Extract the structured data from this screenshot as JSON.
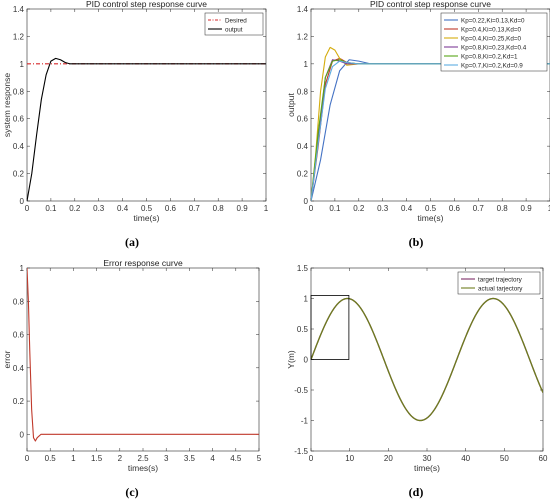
{
  "captions": [
    "(a)",
    "(b)",
    "(c)",
    "(d)"
  ],
  "chart_data": [
    {
      "id": "a",
      "type": "line",
      "title": "PID control step response curve",
      "xlabel": "time(s)",
      "ylabel": "system response",
      "xlim": [
        0,
        1
      ],
      "ylim": [
        0,
        1.4
      ],
      "xticks": [
        0,
        0.1,
        0.2,
        0.3,
        0.4,
        0.5,
        0.6,
        0.7,
        0.8,
        0.9,
        1
      ],
      "yticks": [
        0,
        0.2,
        0.4,
        0.6,
        0.8,
        1,
        1.2,
        1.4
      ],
      "legend": "top-right",
      "series": [
        {
          "name": "Desired",
          "color": "#d62728",
          "dash": "dashdot",
          "x": [
            0,
            1
          ],
          "y": [
            1,
            1
          ]
        },
        {
          "name": "output",
          "color": "#000000",
          "x": [
            0,
            0.02,
            0.04,
            0.06,
            0.08,
            0.1,
            0.12,
            0.14,
            0.16,
            0.18,
            0.2,
            0.25,
            0.3,
            1
          ],
          "y": [
            0,
            0.2,
            0.48,
            0.74,
            0.92,
            1.02,
            1.04,
            1.03,
            1.01,
            1.0,
            1.0,
            1.0,
            1.0,
            1.0
          ]
        }
      ]
    },
    {
      "id": "b",
      "type": "line",
      "title": "PID control step response curve",
      "xlabel": "time(s)",
      "ylabel": "output",
      "xlim": [
        0,
        1
      ],
      "ylim": [
        0,
        1.4
      ],
      "xticks": [
        0,
        0.1,
        0.2,
        0.3,
        0.4,
        0.5,
        0.6,
        0.7,
        0.8,
        0.9,
        1
      ],
      "yticks": [
        0,
        0.2,
        0.4,
        0.6,
        0.8,
        1,
        1.2,
        1.4
      ],
      "legend": "top-right",
      "series": [
        {
          "name": "Kp=0.22,Ki=0.13,Kd=0",
          "color": "#4472c4",
          "x": [
            0,
            0.04,
            0.08,
            0.12,
            0.16,
            0.2,
            0.25,
            0.3,
            1
          ],
          "y": [
            0,
            0.3,
            0.7,
            0.95,
            1.03,
            1.02,
            1.0,
            1.0,
            1.0
          ]
        },
        {
          "name": "Kp=0.4,Ki=0.13,Kd=0",
          "color": "#c0392b",
          "x": [
            0,
            0.03,
            0.06,
            0.09,
            0.12,
            0.15,
            0.2,
            0.25,
            1
          ],
          "y": [
            0,
            0.4,
            0.85,
            1.02,
            1.04,
            1.01,
            1.0,
            1.0,
            1.0
          ]
        },
        {
          "name": "Kp=0.4,Ki=0.25,Kd=0",
          "color": "#d4ac0d",
          "x": [
            0,
            0.02,
            0.04,
            0.06,
            0.08,
            0.1,
            0.12,
            0.15,
            0.2,
            0.25,
            1
          ],
          "y": [
            0,
            0.35,
            0.8,
            1.05,
            1.12,
            1.1,
            1.04,
            0.99,
            1.0,
            1.0,
            1.0
          ]
        },
        {
          "name": "Kp=0.8,Ki=0.23,Kd=0.4",
          "color": "#7d3c98",
          "x": [
            0,
            0.03,
            0.06,
            0.09,
            0.12,
            0.15,
            0.2,
            0.25,
            1
          ],
          "y": [
            0,
            0.45,
            0.9,
            1.03,
            1.02,
            1.0,
            1.0,
            1.0,
            1.0
          ]
        },
        {
          "name": "Kp=0.8,Ki=0.2,Kd=1",
          "color": "#58a618",
          "x": [
            0,
            0.03,
            0.06,
            0.09,
            0.12,
            0.15,
            0.2,
            0.25,
            1
          ],
          "y": [
            0,
            0.5,
            0.9,
            1.02,
            1.03,
            1.01,
            1.0,
            1.0,
            1.0
          ]
        },
        {
          "name": "Kp=0.7,Ki=0.2,Kd=0.9",
          "color": "#5dade2",
          "x": [
            0,
            0.03,
            0.06,
            0.09,
            0.12,
            0.15,
            0.2,
            0.25,
            1
          ],
          "y": [
            0,
            0.42,
            0.82,
            0.98,
            1.02,
            1.01,
            1.0,
            1.0,
            1.0
          ]
        }
      ]
    },
    {
      "id": "c",
      "type": "line",
      "title": "Error response curve",
      "xlabel": "times(s)",
      "ylabel": "error",
      "xlim": [
        0,
        5
      ],
      "ylim": [
        -0.1,
        1
      ],
      "xticks": [
        0,
        0.5,
        1,
        1.5,
        2,
        2.5,
        3,
        3.5,
        4,
        4.5,
        5
      ],
      "yticks": [
        0,
        0.2,
        0.4,
        0.6,
        0.8,
        1
      ],
      "series": [
        {
          "name": "",
          "color": "#c0392b",
          "x": [
            0,
            0.03,
            0.06,
            0.1,
            0.14,
            0.18,
            0.22,
            0.3,
            0.4,
            5
          ],
          "y": [
            1,
            0.8,
            0.5,
            0.15,
            -0.02,
            -0.04,
            -0.02,
            0,
            0,
            0
          ]
        }
      ]
    },
    {
      "id": "d",
      "type": "line",
      "title": "",
      "xlabel": "time(s)",
      "ylabel": "Y(m)",
      "xlim": [
        0,
        60
      ],
      "ylim": [
        -1.5,
        1.5
      ],
      "xticks": [
        0,
        10,
        20,
        30,
        40,
        50,
        60
      ],
      "yticks": [
        -1.5,
        -1,
        -0.5,
        0,
        0.5,
        1,
        1.5
      ],
      "legend": "top-right",
      "highlight_box": {
        "x": [
          0,
          9.8
        ],
        "y": [
          0,
          1.05
        ]
      },
      "series": [
        {
          "name": "target trajectory",
          "color": "#7d2e68",
          "function": "sin",
          "period": 37.7
        },
        {
          "name": "actual tarjectory",
          "color": "#6e7d1f",
          "function": "sin",
          "period": 37.7
        }
      ]
    }
  ]
}
